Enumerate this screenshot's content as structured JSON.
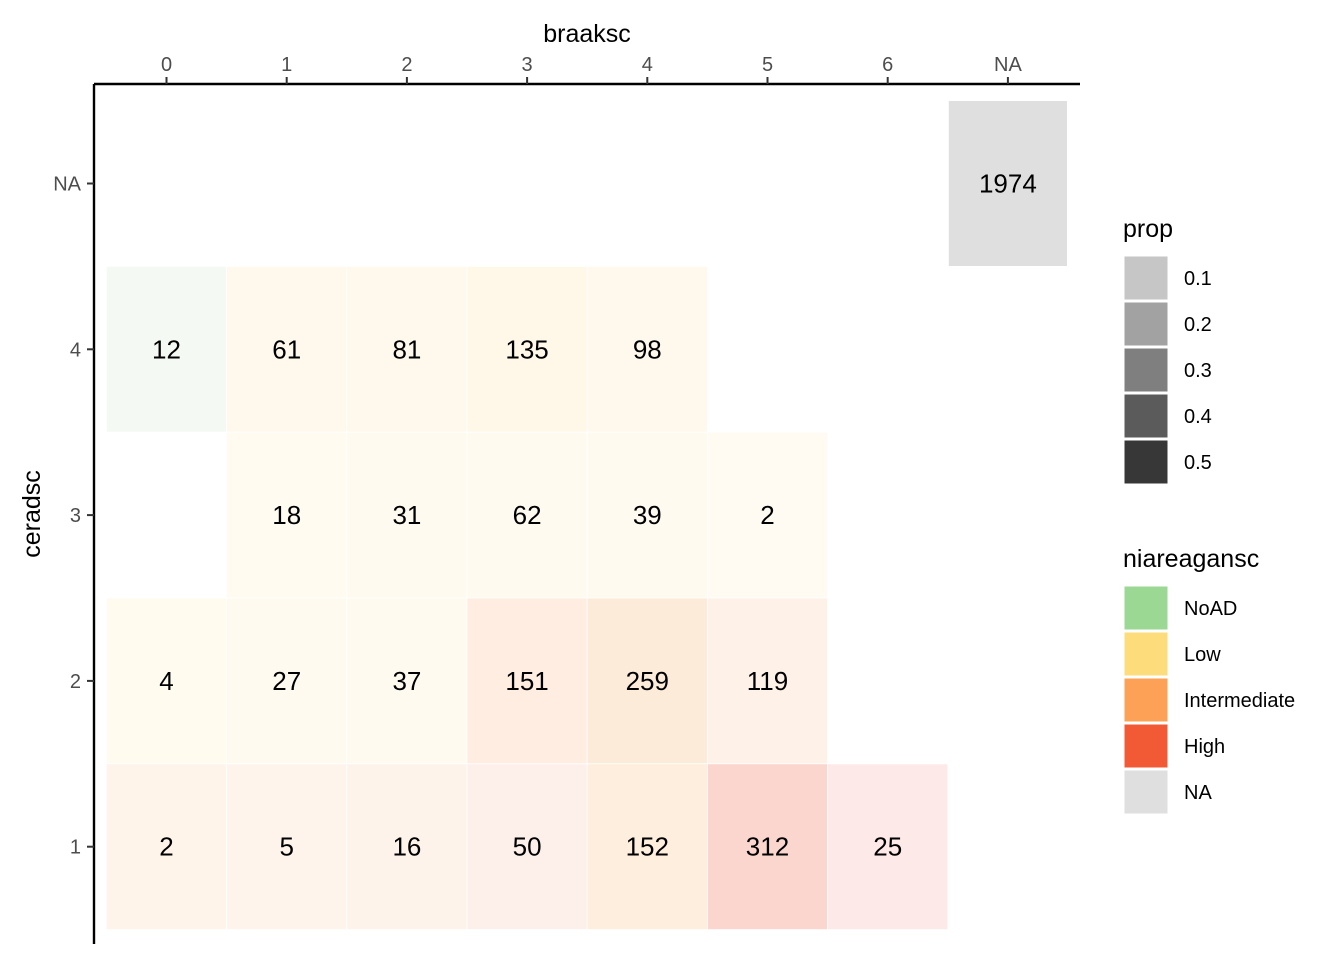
{
  "chart_data": {
    "type": "heatmap",
    "title": "",
    "xlabel": "braaksc",
    "ylabel": "ceradsc",
    "x_categories": [
      "0",
      "1",
      "2",
      "3",
      "4",
      "5",
      "6",
      "NA"
    ],
    "y_categories": [
      "1",
      "2",
      "3",
      "4",
      "NA"
    ],
    "x_axis_position": "top",
    "grid": false,
    "cells": [
      {
        "x": "0",
        "y": "4",
        "count": 12,
        "niareagansc": "NoAD",
        "prop": 0.04
      },
      {
        "x": "1",
        "y": "4",
        "count": 61,
        "niareagansc": "Low",
        "prop": 0.03
      },
      {
        "x": "2",
        "y": "4",
        "count": 81,
        "niareagansc": "Low",
        "prop": 0.04
      },
      {
        "x": "3",
        "y": "4",
        "count": 135,
        "niareagansc": "Low",
        "prop": 0.07
      },
      {
        "x": "4",
        "y": "4",
        "count": 98,
        "niareagansc": "Low",
        "prop": 0.05
      },
      {
        "x": "1",
        "y": "3",
        "count": 18,
        "niareagansc": "Low",
        "prop": 0.02
      },
      {
        "x": "2",
        "y": "3",
        "count": 31,
        "niareagansc": "Low",
        "prop": 0.02
      },
      {
        "x": "3",
        "y": "3",
        "count": 62,
        "niareagansc": "Low",
        "prop": 0.03
      },
      {
        "x": "4",
        "y": "3",
        "count": 39,
        "niareagansc": "Low",
        "prop": 0.02
      },
      {
        "x": "5",
        "y": "3",
        "count": 2,
        "niareagansc": "Low",
        "prop": 0.01
      },
      {
        "x": "0",
        "y": "2",
        "count": 4,
        "niareagansc": "Low",
        "prop": 0.02
      },
      {
        "x": "1",
        "y": "2",
        "count": 27,
        "niareagansc": "Low",
        "prop": 0.02
      },
      {
        "x": "2",
        "y": "2",
        "count": 37,
        "niareagansc": "Low",
        "prop": 0.02
      },
      {
        "x": "3",
        "y": "2",
        "count": 151,
        "niareagansc": "Intermediate",
        "prop": 0.09
      },
      {
        "x": "4",
        "y": "2",
        "count": 259,
        "niareagansc": "Intermediate",
        "prop": 0.13
      },
      {
        "x": "5",
        "y": "2",
        "count": 119,
        "niareagansc": "Intermediate",
        "prop": 0.06
      },
      {
        "x": "0",
        "y": "1",
        "count": 2,
        "niareagansc": "Intermediate",
        "prop": 0.05
      },
      {
        "x": "1",
        "y": "1",
        "count": 5,
        "niareagansc": "Intermediate",
        "prop": 0.05
      },
      {
        "x": "2",
        "y": "1",
        "count": 16,
        "niareagansc": "Intermediate",
        "prop": 0.05
      },
      {
        "x": "3",
        "y": "1",
        "count": 50,
        "niareagansc": "High",
        "prop": 0.04
      },
      {
        "x": "4",
        "y": "1",
        "count": 152,
        "niareagansc": "Intermediate",
        "prop": 0.1
      },
      {
        "x": "5",
        "y": "1",
        "count": 312,
        "niareagansc": "High",
        "prop": 0.2
      },
      {
        "x": "6",
        "y": "1",
        "count": 25,
        "niareagansc": "High",
        "prop": 0.09
      },
      {
        "x": "NA",
        "y": "NA",
        "count": 1974,
        "niareagansc": "NA",
        "prop": 1.0
      }
    ],
    "cell_colors": [
      "#f4faf3",
      "#fff9ed",
      "#fff8ed",
      "#fff8e8",
      "#fff8ec",
      "#fffbf0",
      "#fffaef",
      "#fffaf0",
      "#fffaef",
      "#fffbf2",
      "#fffbef",
      "#fffaf0",
      "#fffaef",
      "#feede0",
      "#fdebd9",
      "#fef1e8",
      "#fef4ea",
      "#fef4ec",
      "#fef3ea",
      "#fdf0ea",
      "#feeedd",
      "#fad6ce",
      "#fde9e7",
      "#dfdfdf"
    ],
    "legends": [
      {
        "title": "prop",
        "placement": "right",
        "entries": [
          {
            "label": "0.1",
            "color": "#c6c6c6"
          },
          {
            "label": "0.2",
            "color": "#a2a2a2"
          },
          {
            "label": "0.3",
            "color": "#7f7f7f"
          },
          {
            "label": "0.4",
            "color": "#5b5b5b"
          },
          {
            "label": "0.5",
            "color": "#373737"
          }
        ]
      },
      {
        "title": "niareagansc",
        "placement": "right",
        "entries": [
          {
            "label": "NoAD",
            "color": "#9ad893"
          },
          {
            "label": "Low",
            "color": "#fddc7c"
          },
          {
            "label": "Intermediate",
            "color": "#fca155"
          },
          {
            "label": "High",
            "color": "#f25935"
          },
          {
            "label": "NA",
            "color": "#dfdfdf"
          }
        ]
      }
    ]
  }
}
